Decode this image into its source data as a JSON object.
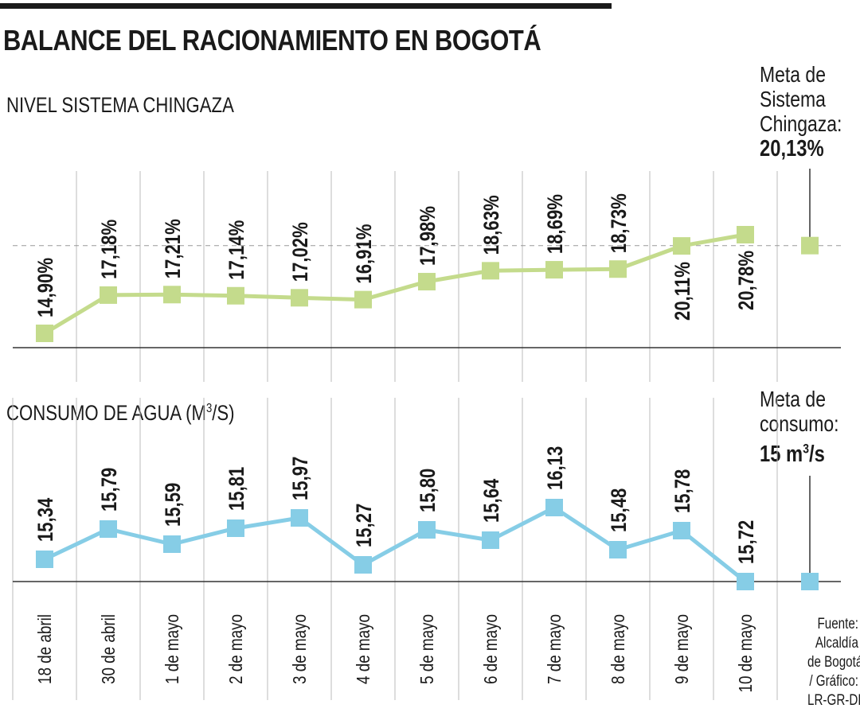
{
  "title": "BALANCE DEL RACIONAMIENTO EN BOGOTÁ",
  "source": [
    "Fuente:",
    "Alcaldía",
    "de Bogotá",
    "/ Gráfico:",
    "LR-GR-DH"
  ],
  "colors": {
    "chingaza": "#c4db8c",
    "consumo": "#86cde6",
    "axis": "#333333",
    "grid": "#bbbbbb"
  },
  "chart_data": [
    {
      "type": "line",
      "title": "NIVEL SISTEMA CHINGAZA",
      "categories": [
        "18 de abril",
        "30 de abril",
        "1 de mayo",
        "2 de mayo",
        "3 de mayo",
        "4 de mayo",
        "5 de mayo",
        "6 de mayo",
        "7 de mayo",
        "8 de mayo",
        "9 de mayo",
        "10 de mayo"
      ],
      "values": [
        14.9,
        17.18,
        17.21,
        17.14,
        17.02,
        16.91,
        17.98,
        18.63,
        18.69,
        18.73,
        20.11,
        20.78
      ],
      "value_labels": [
        "14,90%",
        "17,18%",
        "17,21%",
        "17,14%",
        "17,02%",
        "16,91%",
        "17,98%",
        "18,63%",
        "18,69%",
        "18,73%",
        "20,11%",
        "20,78%"
      ],
      "target": {
        "label_lines": [
          "Meta de",
          "Sistema",
          "Chingaza:"
        ],
        "value_label": "20,13%",
        "value": 20.13
      },
      "ylim": [
        12,
        21.5
      ]
    },
    {
      "type": "line",
      "title_main": "CONSUMO DE AGUA (M",
      "title_sup": "3",
      "title_end": "/S)",
      "categories": [
        "18 de abril",
        "30 de abril",
        "1 de mayo",
        "2 de mayo",
        "3 de mayo",
        "4 de mayo",
        "5 de mayo",
        "6 de mayo",
        "7 de mayo",
        "8 de mayo",
        "9 de mayo",
        "10 de mayo"
      ],
      "values": [
        15.34,
        15.79,
        15.59,
        15.81,
        15.97,
        15.27,
        15.8,
        15.64,
        16.13,
        15.48,
        15.78,
        15.72
      ],
      "value_labels": [
        "15,34",
        "15,79",
        "15,59",
        "15,81",
        "15,97",
        "15,27",
        "15,80",
        "15,64",
        "16,13",
        "15,48",
        "15,78",
        "15,72"
      ],
      "target": {
        "label_lines": [
          "Meta de",
          "consumo:"
        ],
        "value_main": "15 m",
        "value_sup": "3",
        "value_end": "/s",
        "value": 15
      }
    }
  ]
}
